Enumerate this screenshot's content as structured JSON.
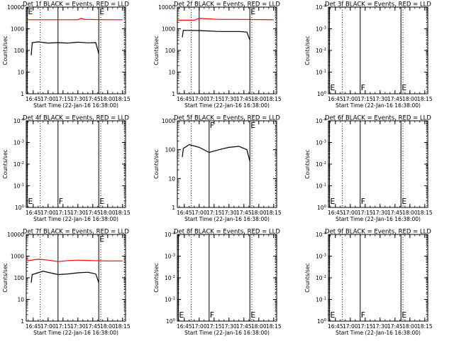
{
  "figure": {
    "xlabel": "Start Time (22-Jan-16 16:38:00)",
    "ylabel": "Counts/sec",
    "colors": {
      "events": "#000000",
      "lld": "#ff0000",
      "axes": "#000000"
    }
  },
  "chart_data": [
    {
      "type": "line",
      "title": "Det 1f BLACK = Events, RED = LLD",
      "ylabel": "Counts/sec",
      "xlabel": "Start Time (22-Jan-16 16:38:00)",
      "yscale": "log",
      "xlim": [
        "16:38",
        "18:18"
      ],
      "ylim": [
        1,
        10000
      ],
      "xticks": [
        "16:45",
        "17:00",
        "17:15",
        "17:30",
        "17:45",
        "18:00",
        "18:15"
      ],
      "yticks": [
        "1",
        "10",
        "100",
        "1000",
        "10000"
      ],
      "event_lines": [
        {
          "time": "16:39",
          "style": "solid",
          "label": "E"
        },
        {
          "time": "17:10",
          "style": "solid",
          "label": ""
        },
        {
          "time": "17:51",
          "style": "solid",
          "label": "E"
        },
        {
          "time": "16:52",
          "style": "dotted",
          "label": ""
        },
        {
          "time": "17:53",
          "style": "dotted",
          "label": ""
        },
        {
          "time": "18:17",
          "style": "dotted",
          "label": ""
        }
      ],
      "series": [
        {
          "color": "#ff0000",
          "points": [
            [
              "16:38",
              2600
            ],
            [
              "17:00",
              2600
            ],
            [
              "17:30",
              2600
            ],
            [
              "17:33",
              3000
            ],
            [
              "17:37",
              2700
            ],
            [
              "18:00",
              2600
            ],
            [
              "18:15",
              2600
            ]
          ]
        },
        {
          "color": "#000000",
          "points": [
            [
              "16:43",
              60
            ],
            [
              "16:44",
              230
            ],
            [
              "16:50",
              250
            ],
            [
              "17:00",
              220
            ],
            [
              "17:10",
              230
            ],
            [
              "17:20",
              220
            ],
            [
              "17:30",
              240
            ],
            [
              "17:40",
              225
            ],
            [
              "17:48",
              230
            ],
            [
              "17:51",
              70
            ]
          ]
        }
      ]
    },
    {
      "type": "line",
      "title": "Det 2f BLACK = Events, RED = LLD",
      "ylabel": "Counts/sec",
      "xlabel": "Start Time (22-Jan-16 16:38:00)",
      "yscale": "log",
      "xlim": [
        "16:38",
        "18:18"
      ],
      "ylim": [
        1,
        10000
      ],
      "xticks": [
        "16:45",
        "17:00",
        "17:15",
        "17:30",
        "17:45",
        "18:00",
        "18:15"
      ],
      "yticks": [
        "1",
        "10",
        "100",
        "1000",
        "10000"
      ],
      "event_lines": [
        {
          "time": "17:00",
          "style": "solid",
          "label": ""
        },
        {
          "time": "17:51",
          "style": "solid",
          "label": "E"
        },
        {
          "time": "16:52",
          "style": "dotted",
          "label": ""
        },
        {
          "time": "17:53",
          "style": "dotted",
          "label": ""
        },
        {
          "time": "18:17",
          "style": "dotted",
          "label": ""
        }
      ],
      "series": [
        {
          "color": "#ff0000",
          "points": [
            [
              "16:38",
              2500
            ],
            [
              "16:55",
              2500
            ],
            [
              "17:00",
              3000
            ],
            [
              "17:20",
              2700
            ],
            [
              "17:40",
              2700
            ],
            [
              "18:15",
              2600
            ]
          ]
        },
        {
          "color": "#000000",
          "points": [
            [
              "16:43",
              400
            ],
            [
              "16:44",
              850
            ],
            [
              "17:00",
              830
            ],
            [
              "17:20",
              750
            ],
            [
              "17:40",
              750
            ],
            [
              "17:48",
              700
            ],
            [
              "17:51",
              300
            ]
          ]
        }
      ]
    },
    {
      "type": "line",
      "title": "Det 3f BLACK = Events, RED = LLD",
      "ylabel": "Counts/sec",
      "xlabel": "Start Time (22-Jan-16 16:38:00)",
      "yscale": "log",
      "xlim": [
        "16:38",
        "18:18"
      ],
      "ylim": [
        1,
        0.0001
      ],
      "xticks": [
        "16:45",
        "17:00",
        "17:15",
        "17:30",
        "17:45",
        "18:00",
        "18:15"
      ],
      "yticks": [
        "10^0",
        "10^-1",
        "10^-2",
        "10^-3",
        "10^-4"
      ],
      "event_lines": [
        {
          "time": "16:39",
          "style": "solid",
          "label": "E"
        },
        {
          "time": "17:10",
          "style": "solid",
          "label": "F"
        },
        {
          "time": "17:51",
          "style": "solid",
          "label": "E"
        },
        {
          "time": "16:52",
          "style": "dotted",
          "label": ""
        },
        {
          "time": "17:53",
          "style": "dotted",
          "label": ""
        },
        {
          "time": "18:17",
          "style": "dotted",
          "label": ""
        }
      ],
      "series": []
    },
    {
      "type": "line",
      "title": "Det 4f BLACK = Events, RED = LLD",
      "ylabel": "Counts/sec",
      "xlabel": "Start Time (22-Jan-16 16:38:00)",
      "yscale": "log",
      "xlim": [
        "16:38",
        "18:18"
      ],
      "ylim": [
        1,
        0.0001
      ],
      "xticks": [
        "16:45",
        "17:00",
        "17:15",
        "17:30",
        "17:45",
        "18:00",
        "18:15"
      ],
      "yticks": [
        "10^0",
        "10^-1",
        "10^-2",
        "10^-3",
        "10^-4"
      ],
      "event_lines": [
        {
          "time": "16:39",
          "style": "solid",
          "label": "E"
        },
        {
          "time": "17:10",
          "style": "solid",
          "label": "F"
        },
        {
          "time": "17:51",
          "style": "solid",
          "label": "E"
        },
        {
          "time": "16:52",
          "style": "dotted",
          "label": ""
        },
        {
          "time": "17:53",
          "style": "dotted",
          "label": ""
        },
        {
          "time": "18:17",
          "style": "dotted",
          "label": ""
        }
      ],
      "series": []
    },
    {
      "type": "line",
      "title": "Det 5f BLACK = Events, RED = LLD",
      "ylabel": "Counts/sec",
      "xlabel": "Start Time (22-Jan-16 16:38:00)",
      "yscale": "log",
      "xlim": [
        "16:38",
        "18:18"
      ],
      "ylim": [
        1,
        1000
      ],
      "xticks": [
        "16:45",
        "17:00",
        "17:15",
        "17:30",
        "17:45",
        "18:00",
        "18:15"
      ],
      "yticks": [
        "1",
        "10",
        "100",
        "1000"
      ],
      "event_lines": [
        {
          "time": "17:10",
          "style": "solid",
          "label": "F"
        },
        {
          "time": "17:51",
          "style": "solid",
          "label": "E"
        },
        {
          "time": "16:52",
          "style": "dotted",
          "label": ""
        },
        {
          "time": "17:53",
          "style": "dotted",
          "label": ""
        },
        {
          "time": "18:17",
          "style": "dotted",
          "label": ""
        }
      ],
      "series": [
        {
          "color": "#000000",
          "points": [
            [
              "16:43",
              55
            ],
            [
              "16:44",
              110
            ],
            [
              "16:50",
              150
            ],
            [
              "17:00",
              120
            ],
            [
              "17:10",
              80
            ],
            [
              "17:20",
              100
            ],
            [
              "17:30",
              120
            ],
            [
              "17:40",
              130
            ],
            [
              "17:48",
              100
            ],
            [
              "17:51",
              40
            ]
          ]
        }
      ]
    },
    {
      "type": "line",
      "title": "Det 6f BLACK = Events, RED = LLD",
      "ylabel": "Counts/sec",
      "xlabel": "Start Time (22-Jan-16 16:38:00)",
      "yscale": "log",
      "xlim": [
        "16:38",
        "18:18"
      ],
      "ylim": [
        1,
        0.0001
      ],
      "xticks": [
        "16:45",
        "17:00",
        "17:15",
        "17:30",
        "17:45",
        "18:00",
        "18:15"
      ],
      "yticks": [
        "10^0",
        "10^-1",
        "10^-2",
        "10^-3",
        "10^-4"
      ],
      "event_lines": [
        {
          "time": "16:39",
          "style": "solid",
          "label": "E"
        },
        {
          "time": "17:10",
          "style": "solid",
          "label": "F"
        },
        {
          "time": "17:51",
          "style": "solid",
          "label": "E"
        },
        {
          "time": "16:52",
          "style": "dotted",
          "label": ""
        },
        {
          "time": "17:53",
          "style": "dotted",
          "label": ""
        },
        {
          "time": "18:17",
          "style": "dotted",
          "label": ""
        }
      ],
      "series": []
    },
    {
      "type": "line",
      "title": "Det 7f BLACK = Events, RED = LLD",
      "ylabel": "Counts/sec",
      "xlabel": "Start Time (22-Jan-16 16:38:00)",
      "yscale": "log",
      "xlim": [
        "16:38",
        "18:18"
      ],
      "ylim": [
        1,
        10000
      ],
      "xticks": [
        "16:45",
        "17:00",
        "17:15",
        "17:30",
        "17:45",
        "18:00",
        "18:15"
      ],
      "yticks": [
        "1",
        "10",
        "100",
        "1000",
        "10000"
      ],
      "event_lines": [
        {
          "time": "17:10",
          "style": "solid",
          "label": ""
        },
        {
          "time": "17:51",
          "style": "solid",
          "label": "E"
        },
        {
          "time": "16:52",
          "style": "dotted",
          "label": ""
        },
        {
          "time": "17:53",
          "style": "dotted",
          "label": ""
        },
        {
          "time": "18:17",
          "style": "dotted",
          "label": ""
        }
      ],
      "series": [
        {
          "color": "#ff0000",
          "points": [
            [
              "16:38",
              600
            ],
            [
              "16:50",
              720
            ],
            [
              "17:00",
              650
            ],
            [
              "17:10",
              560
            ],
            [
              "17:20",
              620
            ],
            [
              "17:30",
              650
            ],
            [
              "17:45",
              620
            ],
            [
              "18:00",
              600
            ],
            [
              "18:15",
              600
            ]
          ]
        },
        {
          "color": "#000000",
          "points": [
            [
              "16:43",
              60
            ],
            [
              "16:44",
              140
            ],
            [
              "16:55",
              200
            ],
            [
              "17:10",
              140
            ],
            [
              "17:20",
              150
            ],
            [
              "17:30",
              170
            ],
            [
              "17:40",
              180
            ],
            [
              "17:48",
              150
            ],
            [
              "17:51",
              60
            ]
          ]
        }
      ]
    },
    {
      "type": "line",
      "title": "Det 8f BLACK = Events, RED = LLD",
      "ylabel": "Counts/sec",
      "xlabel": "Start Time (22-Jan-16 16:38:00)",
      "yscale": "log",
      "xlim": [
        "16:38",
        "18:18"
      ],
      "ylim": [
        1,
        0.0001
      ],
      "xticks": [
        "16:45",
        "17:00",
        "17:15",
        "17:30",
        "17:45",
        "18:00",
        "18:15"
      ],
      "yticks": [
        "10^0",
        "10^-1",
        "10^-2",
        "10^-3",
        "10^-4"
      ],
      "event_lines": [
        {
          "time": "16:39",
          "style": "solid",
          "label": "E"
        },
        {
          "time": "17:10",
          "style": "solid",
          "label": "F"
        },
        {
          "time": "17:51",
          "style": "solid",
          "label": "E"
        },
        {
          "time": "16:52",
          "style": "dotted",
          "label": ""
        },
        {
          "time": "17:53",
          "style": "dotted",
          "label": ""
        },
        {
          "time": "18:17",
          "style": "dotted",
          "label": ""
        }
      ],
      "series": []
    },
    {
      "type": "line",
      "title": "Det 9f BLACK = Events, RED = LLD",
      "ylabel": "Counts/sec",
      "xlabel": "Start Time (22-Jan-16 16:38:00)",
      "yscale": "log",
      "xlim": [
        "16:38",
        "18:18"
      ],
      "ylim": [
        1,
        0.0001
      ],
      "xticks": [
        "16:45",
        "17:00",
        "17:15",
        "17:30",
        "17:45",
        "18:00",
        "18:15"
      ],
      "yticks": [
        "10^0",
        "10^-1",
        "10^-2",
        "10^-3",
        "10^-4"
      ],
      "event_lines": [
        {
          "time": "16:39",
          "style": "solid",
          "label": "E"
        },
        {
          "time": "17:10",
          "style": "solid",
          "label": "F"
        },
        {
          "time": "17:51",
          "style": "solid",
          "label": "E"
        },
        {
          "time": "16:52",
          "style": "dotted",
          "label": ""
        },
        {
          "time": "17:53",
          "style": "dotted",
          "label": ""
        },
        {
          "time": "18:17",
          "style": "dotted",
          "label": ""
        }
      ],
      "series": []
    }
  ]
}
